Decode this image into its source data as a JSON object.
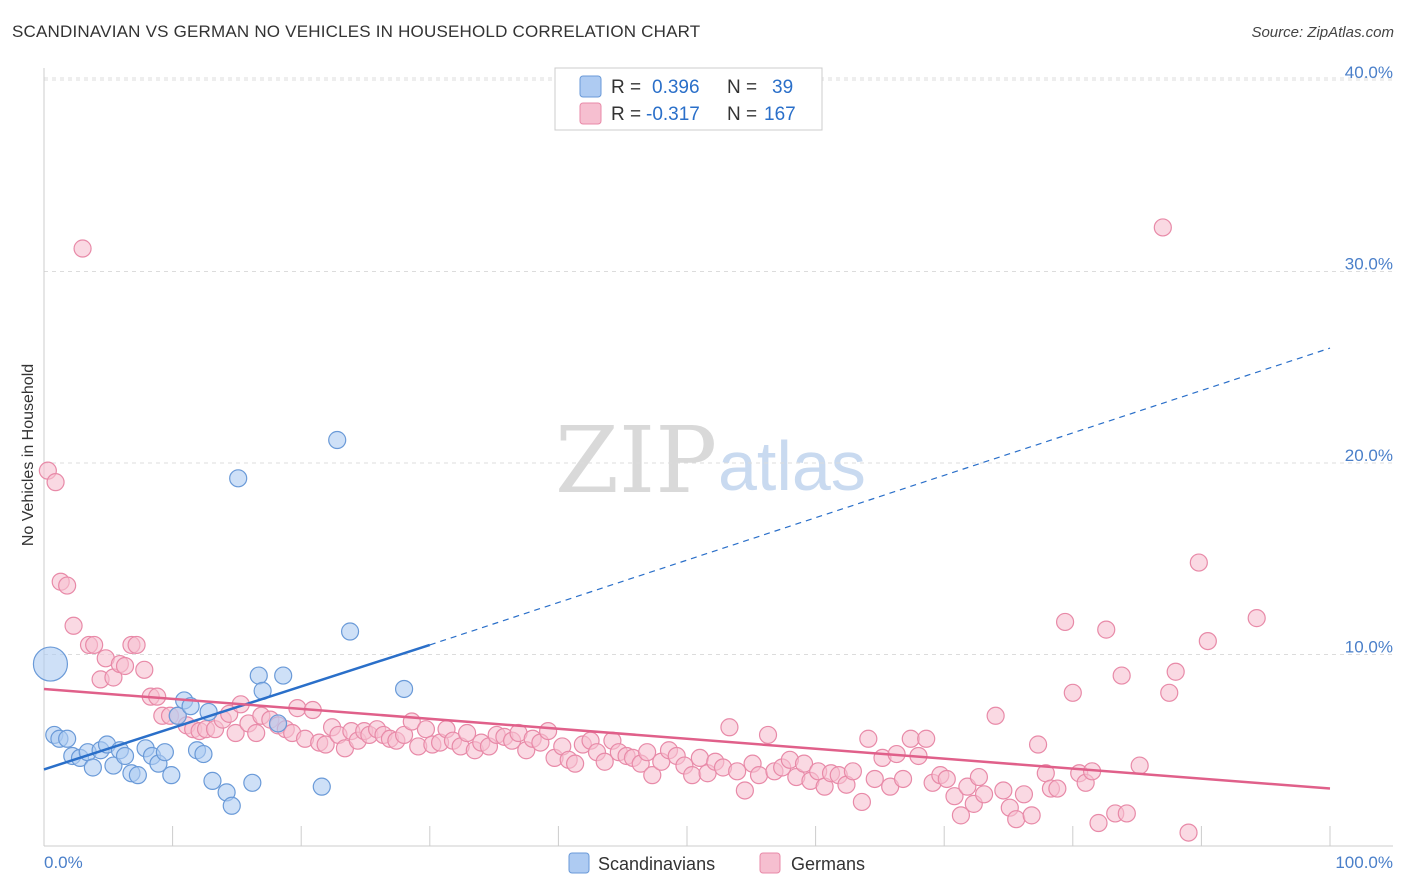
{
  "title": "SCANDINAVIAN VS GERMAN NO VEHICLES IN HOUSEHOLD CORRELATION CHART",
  "source": "Source: ZipAtlas.com",
  "watermark": {
    "zip": "ZIP",
    "atlas": "atlas"
  },
  "colors": {
    "scandinavian_fill": "#aecbf2",
    "scandinavian_stroke": "#6a9ad8",
    "scandinavian_line": "#2a6fc9",
    "german_fill": "#f6bfd0",
    "german_stroke": "#e88aa8",
    "german_line": "#e0608a",
    "tick_text": "#4a7fc9",
    "grid": "#dcdcdc"
  },
  "legend": {
    "rows": [
      {
        "r_label": "R =",
        "r_value": "0.396",
        "n_label": "N =",
        "n_value": "39"
      },
      {
        "r_label": "R =",
        "r_value": "-0.317",
        "n_label": "N =",
        "n_value": "167"
      }
    ]
  },
  "chart_data": {
    "type": "scatter",
    "title": "SCANDINAVIAN VS GERMAN NO VEHICLES IN HOUSEHOLD CORRELATION CHART",
    "xlabel": "",
    "ylabel": "No Vehicles in Household",
    "xlim": [
      0,
      100
    ],
    "ylim": [
      0,
      42
    ],
    "x_tick_labels": [
      "0.0%",
      "100.0%"
    ],
    "y_ticks": [
      10,
      20,
      30,
      40
    ],
    "y_tick_labels": [
      "10.0%",
      "20.0%",
      "30.0%",
      "40.0%"
    ],
    "grid": true,
    "legend_position": "top-center",
    "series": [
      {
        "name": "Scandinavians",
        "points": [
          [
            0.5,
            9.5
          ],
          [
            0.8,
            5.8
          ],
          [
            1.2,
            5.6
          ],
          [
            1.8,
            5.6
          ],
          [
            2.2,
            4.7
          ],
          [
            2.8,
            4.6
          ],
          [
            3.4,
            4.9
          ],
          [
            3.8,
            4.1
          ],
          [
            4.4,
            5.0
          ],
          [
            4.9,
            5.3
          ],
          [
            5.4,
            4.2
          ],
          [
            5.9,
            5.0
          ],
          [
            6.3,
            4.7
          ],
          [
            6.8,
            3.8
          ],
          [
            7.3,
            3.7
          ],
          [
            7.9,
            5.1
          ],
          [
            8.4,
            4.7
          ],
          [
            8.9,
            4.3
          ],
          [
            9.4,
            4.9
          ],
          [
            9.9,
            3.7
          ],
          [
            10.4,
            6.8
          ],
          [
            10.9,
            7.6
          ],
          [
            11.4,
            7.3
          ],
          [
            11.9,
            5.0
          ],
          [
            12.4,
            4.8
          ],
          [
            12.8,
            7.0
          ],
          [
            13.1,
            3.4
          ],
          [
            14.2,
            2.8
          ],
          [
            14.6,
            2.1
          ],
          [
            15.1,
            19.2
          ],
          [
            16.2,
            3.3
          ],
          [
            16.7,
            8.9
          ],
          [
            17.0,
            8.1
          ],
          [
            18.2,
            6.4
          ],
          [
            18.6,
            8.9
          ],
          [
            21.6,
            3.1
          ],
          [
            22.8,
            21.2
          ],
          [
            23.8,
            11.2
          ],
          [
            28.0,
            8.2
          ]
        ],
        "trend": {
          "solid": [
            [
              0,
              4.0
            ],
            [
              30,
              10.5
            ]
          ],
          "dashed": [
            [
              30,
              10.5
            ],
            [
              100,
              26.0
            ]
          ]
        }
      },
      {
        "name": "Germans",
        "points": [
          [
            0.3,
            19.6
          ],
          [
            0.9,
            19.0
          ],
          [
            1.3,
            13.8
          ],
          [
            1.8,
            13.6
          ],
          [
            2.3,
            11.5
          ],
          [
            3.0,
            31.2
          ],
          [
            3.5,
            10.5
          ],
          [
            3.9,
            10.5
          ],
          [
            4.4,
            8.7
          ],
          [
            4.8,
            9.8
          ],
          [
            5.4,
            8.8
          ],
          [
            5.9,
            9.5
          ],
          [
            6.3,
            9.4
          ],
          [
            6.8,
            10.5
          ],
          [
            7.2,
            10.5
          ],
          [
            7.8,
            9.2
          ],
          [
            8.3,
            7.8
          ],
          [
            8.8,
            7.8
          ],
          [
            9.2,
            6.8
          ],
          [
            9.8,
            6.8
          ],
          [
            10.4,
            6.8
          ],
          [
            11.1,
            6.3
          ],
          [
            11.6,
            6.1
          ],
          [
            12.1,
            6.0
          ],
          [
            12.6,
            6.1
          ],
          [
            13.3,
            6.1
          ],
          [
            13.9,
            6.6
          ],
          [
            14.4,
            6.9
          ],
          [
            14.9,
            5.9
          ],
          [
            15.3,
            7.4
          ],
          [
            15.9,
            6.4
          ],
          [
            16.5,
            5.9
          ],
          [
            16.9,
            6.8
          ],
          [
            17.6,
            6.6
          ],
          [
            18.2,
            6.3
          ],
          [
            18.8,
            6.1
          ],
          [
            19.3,
            5.9
          ],
          [
            19.7,
            7.2
          ],
          [
            20.3,
            5.6
          ],
          [
            20.9,
            7.1
          ],
          [
            21.4,
            5.4
          ],
          [
            21.9,
            5.3
          ],
          [
            22.4,
            6.2
          ],
          [
            22.9,
            5.8
          ],
          [
            23.4,
            5.1
          ],
          [
            23.9,
            6.0
          ],
          [
            24.4,
            5.5
          ],
          [
            24.9,
            6.0
          ],
          [
            25.3,
            5.8
          ],
          [
            25.9,
            6.1
          ],
          [
            26.4,
            5.8
          ],
          [
            26.9,
            5.6
          ],
          [
            27.4,
            5.5
          ],
          [
            28.0,
            5.8
          ],
          [
            28.6,
            6.5
          ],
          [
            29.1,
            5.2
          ],
          [
            29.7,
            6.1
          ],
          [
            30.2,
            5.3
          ],
          [
            30.8,
            5.4
          ],
          [
            31.3,
            6.1
          ],
          [
            31.8,
            5.5
          ],
          [
            32.4,
            5.2
          ],
          [
            32.9,
            5.9
          ],
          [
            33.5,
            5.0
          ],
          [
            34.0,
            5.4
          ],
          [
            34.6,
            5.2
          ],
          [
            35.2,
            5.8
          ],
          [
            35.8,
            5.7
          ],
          [
            36.4,
            5.5
          ],
          [
            36.9,
            5.9
          ],
          [
            37.5,
            5.0
          ],
          [
            38.0,
            5.6
          ],
          [
            38.6,
            5.4
          ],
          [
            39.2,
            6.0
          ],
          [
            39.7,
            4.6
          ],
          [
            40.3,
            5.2
          ],
          [
            40.8,
            4.5
          ],
          [
            41.3,
            4.3
          ],
          [
            41.9,
            5.3
          ],
          [
            42.5,
            5.5
          ],
          [
            43.0,
            4.9
          ],
          [
            43.6,
            4.4
          ],
          [
            44.2,
            5.5
          ],
          [
            44.7,
            4.9
          ],
          [
            45.3,
            4.7
          ],
          [
            45.8,
            4.6
          ],
          [
            46.4,
            4.3
          ],
          [
            46.9,
            4.9
          ],
          [
            47.3,
            3.7
          ],
          [
            48.0,
            4.4
          ],
          [
            48.6,
            5.0
          ],
          [
            49.2,
            4.7
          ],
          [
            49.8,
            4.2
          ],
          [
            50.4,
            3.7
          ],
          [
            51.0,
            4.6
          ],
          [
            51.6,
            3.8
          ],
          [
            52.2,
            4.4
          ],
          [
            52.8,
            4.1
          ],
          [
            53.3,
            6.2
          ],
          [
            53.9,
            3.9
          ],
          [
            54.5,
            2.9
          ],
          [
            55.1,
            4.3
          ],
          [
            55.6,
            3.7
          ],
          [
            56.3,
            5.8
          ],
          [
            56.8,
            3.9
          ],
          [
            57.4,
            4.1
          ],
          [
            58.0,
            4.5
          ],
          [
            58.5,
            3.6
          ],
          [
            59.1,
            4.3
          ],
          [
            59.6,
            3.4
          ],
          [
            60.2,
            3.9
          ],
          [
            60.7,
            3.1
          ],
          [
            61.2,
            3.8
          ],
          [
            61.8,
            3.7
          ],
          [
            62.4,
            3.2
          ],
          [
            62.9,
            3.9
          ],
          [
            63.6,
            2.3
          ],
          [
            64.1,
            5.6
          ],
          [
            64.6,
            3.5
          ],
          [
            65.2,
            4.6
          ],
          [
            65.8,
            3.1
          ],
          [
            66.3,
            4.8
          ],
          [
            66.8,
            3.5
          ],
          [
            67.4,
            5.6
          ],
          [
            68.0,
            4.7
          ],
          [
            68.6,
            5.6
          ],
          [
            69.1,
            3.3
          ],
          [
            69.7,
            3.7
          ],
          [
            70.2,
            3.5
          ],
          [
            70.8,
            2.6
          ],
          [
            71.3,
            1.6
          ],
          [
            71.8,
            3.1
          ],
          [
            72.3,
            2.2
          ],
          [
            72.7,
            3.6
          ],
          [
            73.1,
            2.7
          ],
          [
            74.0,
            6.8
          ],
          [
            74.6,
            2.9
          ],
          [
            75.1,
            2.0
          ],
          [
            75.6,
            1.4
          ],
          [
            76.2,
            2.7
          ],
          [
            76.8,
            1.6
          ],
          [
            77.3,
            5.3
          ],
          [
            77.9,
            3.8
          ],
          [
            78.3,
            3.0
          ],
          [
            78.8,
            3.0
          ],
          [
            79.4,
            11.7
          ],
          [
            80.0,
            8.0
          ],
          [
            80.5,
            3.8
          ],
          [
            81.0,
            3.3
          ],
          [
            81.5,
            3.9
          ],
          [
            82.0,
            1.2
          ],
          [
            82.6,
            11.3
          ],
          [
            83.3,
            1.7
          ],
          [
            83.8,
            8.9
          ],
          [
            84.2,
            1.7
          ],
          [
            85.2,
            4.2
          ],
          [
            87.0,
            32.3
          ],
          [
            87.5,
            8.0
          ],
          [
            88.0,
            9.1
          ],
          [
            89.0,
            0.7
          ],
          [
            89.8,
            14.8
          ],
          [
            90.5,
            10.7
          ],
          [
            94.3,
            11.9
          ]
        ],
        "trend": {
          "solid": [
            [
              0,
              8.2
            ],
            [
              100,
              3.0
            ]
          ]
        }
      }
    ]
  },
  "bottom_legend": [
    {
      "label": "Scandinavians"
    },
    {
      "label": "Germans"
    }
  ]
}
